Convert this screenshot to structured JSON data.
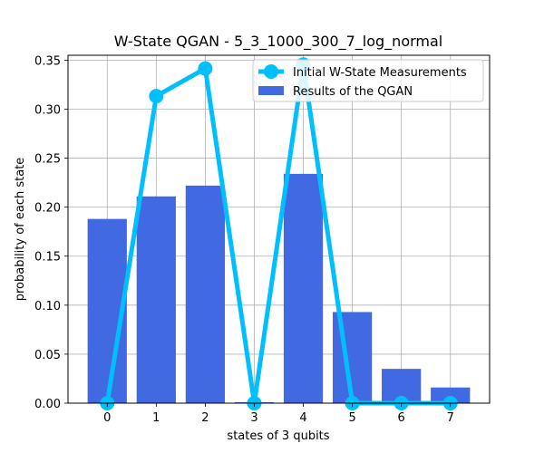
{
  "chart_data": {
    "type": "bar",
    "title": "W-State QGAN - 5_3_1000_300_7_log_normal",
    "xlabel": "states of 3 qubits",
    "ylabel": "probability of each state",
    "categories": [
      "0",
      "1",
      "2",
      "3",
      "4",
      "5",
      "6",
      "7"
    ],
    "ylim": [
      0,
      0.355
    ],
    "yticks": [
      "0.00",
      "0.05",
      "0.10",
      "0.15",
      "0.20",
      "0.25",
      "0.30",
      "0.35"
    ],
    "grid": true,
    "legend_position": "top-right",
    "series": [
      {
        "name": "Results of the QGAN",
        "type": "bar",
        "color": "#4169e1",
        "values": [
          0.188,
          0.211,
          0.222,
          0.001,
          0.234,
          0.093,
          0.035,
          0.016
        ]
      },
      {
        "name": "Initial W-State Measurements",
        "type": "line",
        "color": "#00bfff",
        "values": [
          0.0,
          0.3133,
          0.3415,
          0.0,
          0.3455,
          0.0,
          0.0,
          0.0
        ]
      }
    ]
  }
}
